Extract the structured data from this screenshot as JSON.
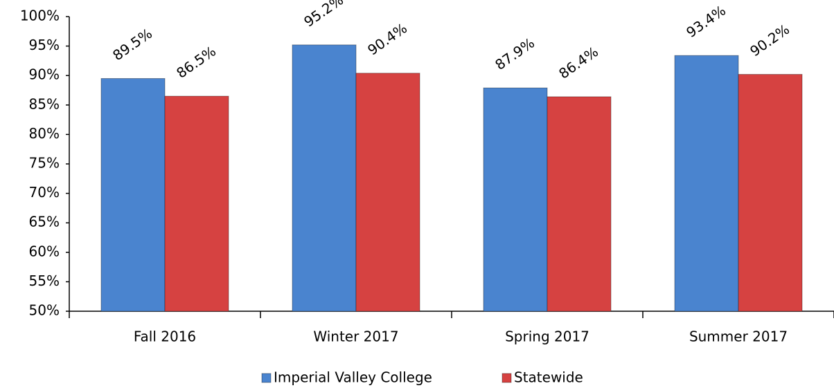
{
  "chart_data": {
    "type": "bar",
    "categories": [
      "Fall 2016",
      "Winter 2017",
      "Spring 2017",
      "Summer 2017"
    ],
    "series": [
      {
        "name": "Imperial Valley College",
        "color": "#4a84cf",
        "values": [
          89.5,
          95.2,
          87.9,
          93.4
        ],
        "value_labels": [
          "89.5%",
          "95.2%",
          "87.9%",
          "93.4%"
        ]
      },
      {
        "name": "Statewide",
        "color": "#d64241",
        "values": [
          86.5,
          90.4,
          86.4,
          90.2
        ],
        "value_labels": [
          "86.5%",
          "90.4%",
          "86.4%",
          "90.2%"
        ]
      }
    ],
    "ylim": [
      50,
      100
    ],
    "yticks": [
      {
        "value": 50,
        "label": "50%"
      },
      {
        "value": 55,
        "label": "55%"
      },
      {
        "value": 60,
        "label": "60%"
      },
      {
        "value": 65,
        "label": "65%"
      },
      {
        "value": 70,
        "label": "70%"
      },
      {
        "value": 75,
        "label": "75%"
      },
      {
        "value": 80,
        "label": "80%"
      },
      {
        "value": 85,
        "label": "85%"
      },
      {
        "value": 90,
        "label": "90%"
      },
      {
        "value": 95,
        "label": "95%"
      },
      {
        "value": 100,
        "label": "100%"
      }
    ],
    "legend": "bottom"
  }
}
